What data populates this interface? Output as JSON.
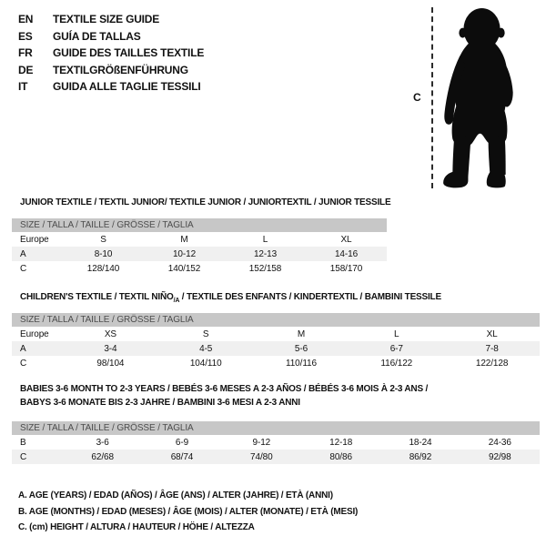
{
  "colors": {
    "text": "#111111",
    "size_bar_bg": "#c7c7c7",
    "size_bar_text": "#4d4d4d",
    "row_stripe": "#f0f0f0",
    "silhouette": "#0c0c0c"
  },
  "language_guide": {
    "items": [
      {
        "code": "EN",
        "title": "TEXTILE SIZE GUIDE"
      },
      {
        "code": "ES",
        "title": "GUÍA DE TALLAS"
      },
      {
        "code": "FR",
        "title": "GUIDE DES TAILLES TEXTILE"
      },
      {
        "code": "DE",
        "title": "TEXTILGRÖßENFÜHRUNG"
      },
      {
        "code": "IT",
        "title": "GUIDA ALLE TAGLIE TESSILI"
      }
    ]
  },
  "figure": {
    "measure_label": "C",
    "depicts": "standing-baby-silhouette"
  },
  "tables": [
    {
      "heading_lines": [
        [
          {
            "t": "JUNIOR TEXTILE / TEXTIL JUNIOR/ TEXTILE JUNIOR / JUNIORTEXTIL / JUNIOR TESSILE"
          }
        ]
      ],
      "size_header": "SIZE / TALLA / TAILLE / GRÖSSE / TAGLIA",
      "rows": [
        [
          "Europe",
          "S",
          "M",
          "L",
          "XL"
        ],
        [
          "A",
          "8-10",
          "10-12",
          "12-13",
          "14-16"
        ],
        [
          "C",
          "128/140",
          "140/152",
          "152/158",
          "158/170"
        ]
      ]
    },
    {
      "heading_lines": [
        [
          {
            "t": "CHILDREN'S TEXTILE / TEXTIL NIÑO"
          },
          {
            "t": "/A",
            "sub": true
          },
          {
            "t": " / TEXTILE DES ENFANTS / KINDERTEXTIL / BAMBINI TESSILE"
          }
        ]
      ],
      "size_header": "SIZE / TALLA / TAILLE / GRÖSSE / TAGLIA",
      "rows": [
        [
          "Europe",
          "XS",
          "S",
          "M",
          "L",
          "XL"
        ],
        [
          "A",
          "3-4",
          "4-5",
          "5-6",
          "6-7",
          "7-8"
        ],
        [
          "C",
          "98/104",
          "104/110",
          "110/116",
          "116/122",
          "122/128"
        ]
      ]
    },
    {
      "heading_lines": [
        [
          {
            "t": "BABIES 3-6 MONTH TO 2-3 YEARS / BEBÉS 3-6 MESES A 2-3 AÑOS / BÉBÉS 3-6 MOIS À 2-3 ANS /"
          }
        ],
        [
          {
            "t": "BABYS 3-6 MONATE BIS 2-3 JAHRE / BAMBINI 3-6 MESI A 2-3 ANNI"
          }
        ]
      ],
      "size_header": "SIZE / TALLA / TAILLE / GRÖSSE / TAGLIA",
      "rows": [
        [
          "B",
          "3-6",
          "6-9",
          "9-12",
          "12-18",
          "18-24",
          "24-36"
        ],
        [
          "C",
          "62/68",
          "68/74",
          "74/80",
          "80/86",
          "86/92",
          "92/98"
        ]
      ]
    }
  ],
  "footnotes": [
    "A. AGE (YEARS) / EDAD (AÑOS) / ÂGE (ANS) / ALTER (JAHRE) / ETÀ (ANNI)",
    "B. AGE (MONTHS) / EDAD (MESES) / ÂGE (MOIS) / ALTER (MONATE) / ETÀ (MESI)",
    "C. (cm) HEIGHT / ALTURA / HAUTEUR / HÖHE / ALTEZZA"
  ]
}
